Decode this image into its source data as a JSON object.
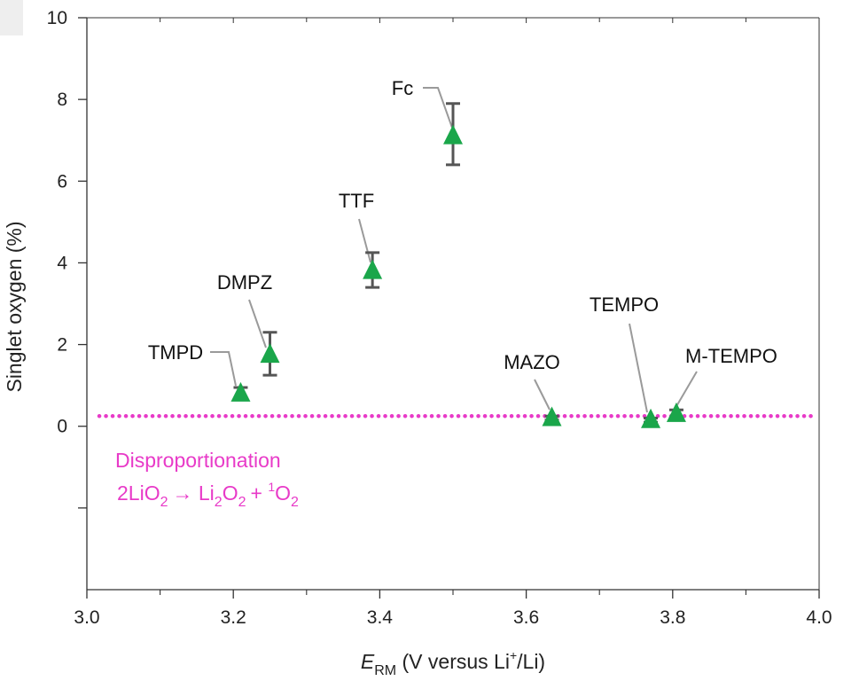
{
  "chart_data": {
    "type": "scatter",
    "xlabel_parts": {
      "main": "E",
      "sub": "RM",
      "rest_a": " (V versus Li",
      "sup": "+",
      "rest_b": "/Li)"
    },
    "ylabel": "Singlet oxygen (%)",
    "xlim": [
      3.0,
      4.0
    ],
    "ylim": [
      -4,
      10
    ],
    "x_ticks": [
      "3.0",
      "3.2",
      "3.4",
      "3.6",
      "3.8",
      "4.0"
    ],
    "y_ticks": [
      "0",
      "2",
      "4",
      "6",
      "8",
      "10"
    ],
    "marker_color": "#1aa64a",
    "error_bar_color": "#555555",
    "points": [
      {
        "label": "TMPD",
        "x": 3.21,
        "y": 0.8,
        "err_low": 0.65,
        "err_high": 0.95
      },
      {
        "label": "DMPZ",
        "x": 3.25,
        "y": 1.75,
        "err_low": 1.25,
        "err_high": 2.3
      },
      {
        "label": "TTF",
        "x": 3.39,
        "y": 3.8,
        "err_low": 3.4,
        "err_high": 4.25
      },
      {
        "label": "Fc",
        "x": 3.5,
        "y": 7.1,
        "err_low": 6.4,
        "err_high": 7.9
      },
      {
        "label": "MAZO",
        "x": 3.635,
        "y": 0.2,
        "err_low": 0.15,
        "err_high": 0.25
      },
      {
        "label": "TEMPO",
        "x": 3.77,
        "y": 0.15,
        "err_low": 0.1,
        "err_high": 0.2
      },
      {
        "label": "M-TEMPO",
        "x": 3.805,
        "y": 0.3,
        "err_low": 0.2,
        "err_high": 0.4
      }
    ],
    "reference_line": {
      "y": 0.25,
      "color": "#e83ac8",
      "label": "Disproportionation",
      "equation_parts": [
        "2LiO",
        "2",
        "→ Li",
        "2",
        "O",
        "2",
        "+ ",
        "1",
        "O",
        "2"
      ]
    }
  }
}
